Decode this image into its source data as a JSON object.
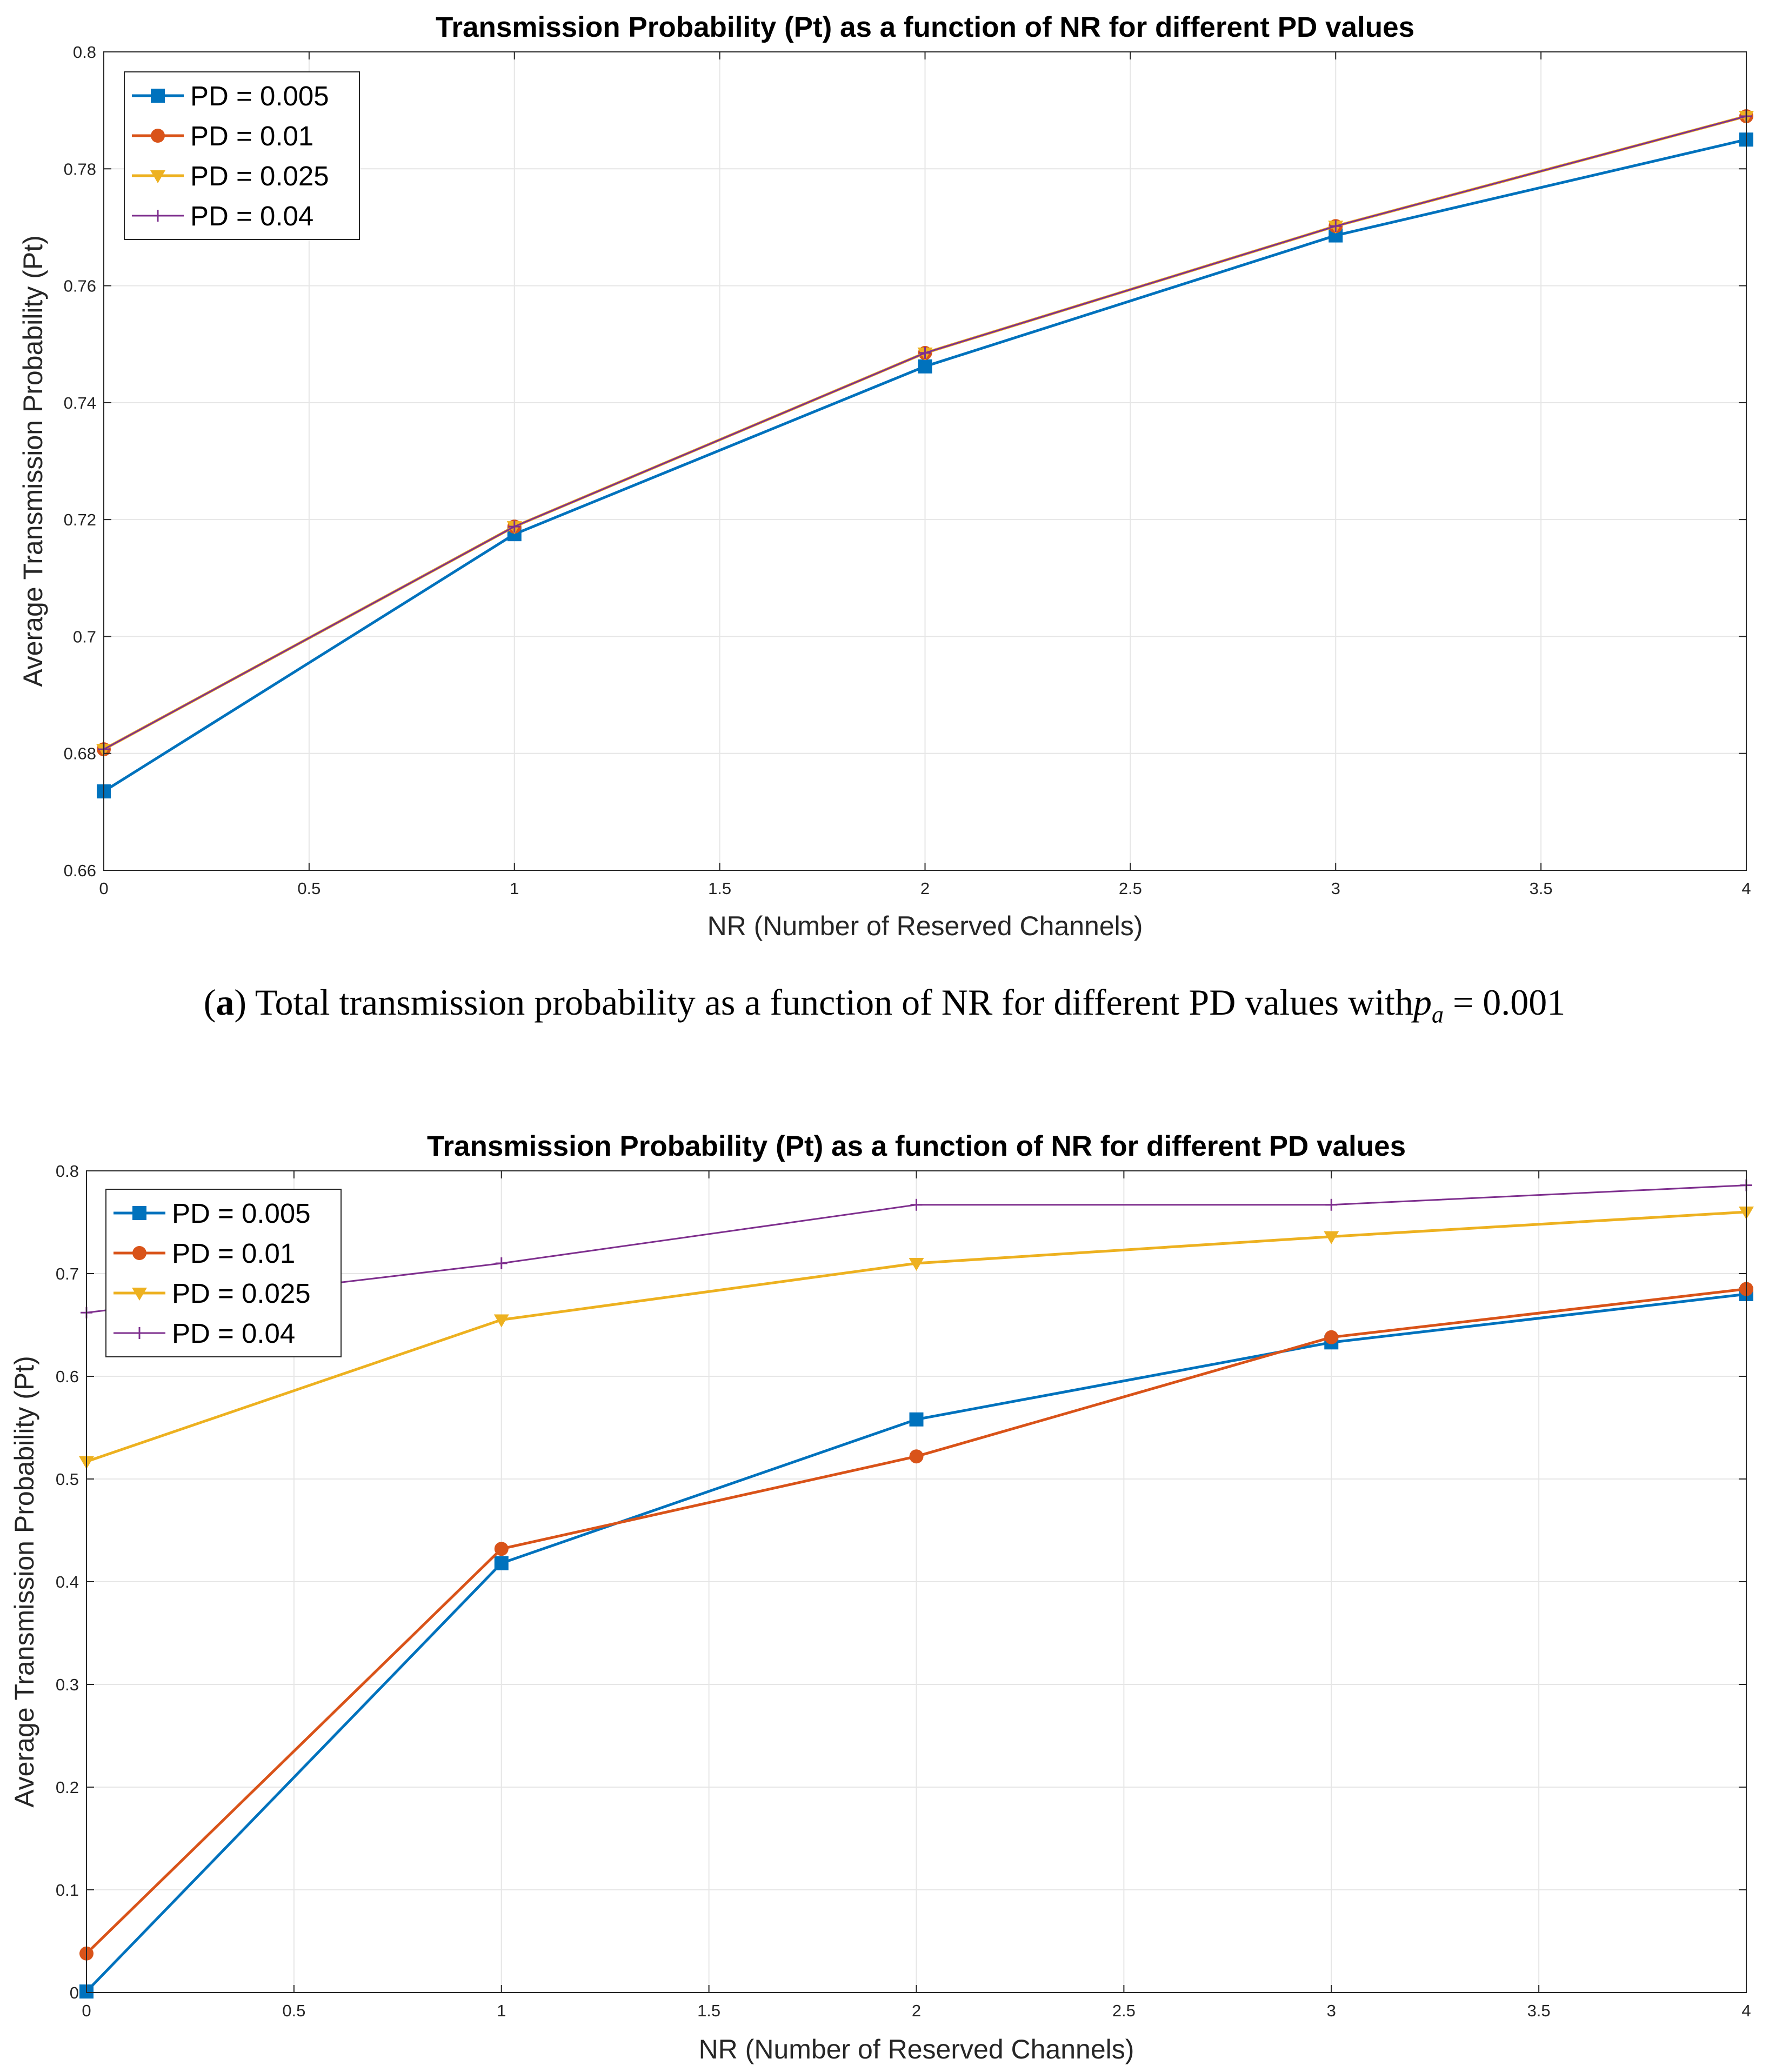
{
  "caption": {
    "label": "a",
    "text": "Total transmission probability as a function of NR for different PD values with",
    "math_var": "p",
    "math_sub": "a",
    "math_rest": " = 0.001"
  },
  "colors": {
    "PD = 0.005": "#0072BD",
    "PD = 0.01": "#D95319",
    "PD = 0.025": "#EDB120",
    "PD = 0.04": "#7E2F8E"
  },
  "chart_data": [
    {
      "type": "line",
      "title": "Transmission Probability (Pt) as a function of NR for different PD values",
      "xlabel": "NR (Number of Reserved Channels)",
      "ylabel": "Average Transmission Probability (Pt)",
      "xlim": [
        0,
        4
      ],
      "ylim": [
        0.66,
        0.8
      ],
      "xticks": [
        0,
        0.5,
        1,
        1.5,
        2,
        2.5,
        3,
        3.5,
        4
      ],
      "xtick_labels": [
        "0",
        "0.5",
        "1",
        "1.5",
        "2",
        "2.5",
        "3",
        "3.5",
        "4"
      ],
      "yticks": [
        0.66,
        0.68,
        0.7,
        0.72,
        0.74,
        0.76,
        0.78,
        0.8
      ],
      "ytick_labels": [
        "0.66",
        "0.68",
        "0.7",
        "0.72",
        "0.74",
        "0.76",
        "0.78",
        "0.8"
      ],
      "grid": true,
      "legend_position": "top-left",
      "x": [
        0,
        1,
        2,
        3,
        4
      ],
      "series": [
        {
          "name": "PD = 0.005",
          "marker": "square",
          "values": [
            0.6735,
            0.7175,
            0.7462,
            0.7686,
            0.785
          ]
        },
        {
          "name": "PD = 0.01",
          "marker": "circle",
          "values": [
            0.6807,
            0.7188,
            0.7485,
            0.7702,
            0.789
          ]
        },
        {
          "name": "PD = 0.025",
          "marker": "triangle-down",
          "values": [
            0.6807,
            0.7188,
            0.7485,
            0.7702,
            0.789
          ]
        },
        {
          "name": "PD = 0.04",
          "marker": "plus",
          "values": [
            0.6807,
            0.7188,
            0.7485,
            0.7702,
            0.789
          ]
        }
      ]
    },
    {
      "type": "line",
      "title": "Transmission Probability (Pt) as a function of NR for different PD values",
      "xlabel": "NR (Number of Reserved Channels)",
      "ylabel": "Average Transmission Probability (Pt)",
      "xlim": [
        0,
        4
      ],
      "ylim": [
        0,
        0.8
      ],
      "xticks": [
        0,
        0.5,
        1,
        1.5,
        2,
        2.5,
        3,
        3.5,
        4
      ],
      "xtick_labels": [
        "0",
        "0.5",
        "1",
        "1.5",
        "2",
        "2.5",
        "3",
        "3.5",
        "4"
      ],
      "yticks": [
        0,
        0.1,
        0.2,
        0.3,
        0.4,
        0.5,
        0.6,
        0.7,
        0.8
      ],
      "ytick_labels": [
        "0",
        "0.1",
        "0.2",
        "0.3",
        "0.4",
        "0.5",
        "0.6",
        "0.7",
        "0.8"
      ],
      "grid": true,
      "legend_position": "top-left",
      "x": [
        0,
        1,
        2,
        3,
        4
      ],
      "series": [
        {
          "name": "PD = 0.005",
          "marker": "square",
          "values": [
            0.001,
            0.418,
            0.558,
            0.633,
            0.68
          ]
        },
        {
          "name": "PD = 0.01",
          "marker": "circle",
          "values": [
            0.038,
            0.432,
            0.522,
            0.638,
            0.685
          ]
        },
        {
          "name": "PD = 0.025",
          "marker": "triangle-down",
          "values": [
            0.517,
            0.655,
            0.71,
            0.736,
            0.76
          ]
        },
        {
          "name": "PD = 0.04",
          "marker": "plus",
          "values": [
            0.662,
            0.71,
            0.767,
            0.767,
            0.786
          ]
        }
      ]
    }
  ]
}
